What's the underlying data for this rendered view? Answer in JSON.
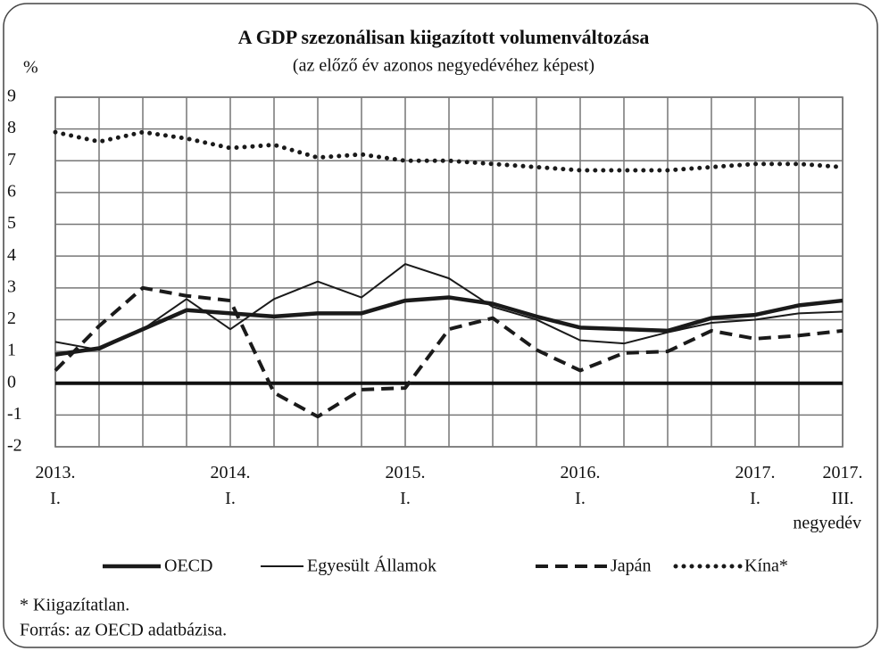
{
  "chart_data": {
    "type": "line",
    "title": "A GDP szezonálisan kiigazított volumenváltozása",
    "subtitle": "(az előző év azonos negyedévéhez képest)",
    "y_label": "%",
    "x_label": "negyedév",
    "categories": [
      "2013.\nI.",
      null,
      null,
      null,
      "2014.\nI.",
      null,
      null,
      null,
      "2015.\nI.",
      null,
      null,
      null,
      "2016.\nI.",
      null,
      null,
      null,
      "2017.\nI.",
      null,
      "2017.\nIII."
    ],
    "series": [
      {
        "name": "OECD",
        "color": "#1a1a1a",
        "style": "thick",
        "values": [
          0.9,
          1.1,
          1.7,
          2.3,
          2.2,
          2.1,
          2.2,
          2.2,
          2.6,
          2.7,
          2.5,
          2.1,
          1.75,
          1.7,
          1.65,
          2.05,
          2.15,
          2.45,
          2.6
        ]
      },
      {
        "name": "Egyesült Államok",
        "color": "#1a1a1a",
        "style": "thin",
        "values": [
          1.3,
          1.05,
          1.7,
          2.65,
          1.7,
          2.65,
          3.2,
          2.7,
          3.75,
          3.3,
          2.4,
          2.0,
          1.35,
          1.25,
          1.6,
          1.9,
          2.0,
          2.2,
          2.25
        ]
      },
      {
        "name": "Japán",
        "color": "#1a1a1a",
        "style": "dashed",
        "values": [
          0.4,
          1.8,
          3.0,
          2.75,
          2.6,
          -0.3,
          -1.05,
          -0.2,
          -0.15,
          1.7,
          2.05,
          1.05,
          0.4,
          0.95,
          1.0,
          1.65,
          1.4,
          1.5,
          1.65
        ]
      },
      {
        "name": "Kína*",
        "color": "#1a1a1a",
        "style": "dotted",
        "values": [
          7.9,
          7.6,
          7.9,
          7.7,
          7.4,
          7.5,
          7.1,
          7.2,
          7.0,
          7.0,
          6.9,
          6.8,
          6.7,
          6.7,
          6.7,
          6.8,
          6.9,
          6.9,
          6.8
        ]
      }
    ],
    "ylim": [
      -2,
      9
    ],
    "yticks": [
      -2,
      -1,
      0,
      1,
      2,
      3,
      4,
      5,
      6,
      7,
      8,
      9
    ],
    "grid": true,
    "legend": "bottom",
    "notes": [
      "* Kiigazítatlan.",
      "Forrás: az OECD adatbázisa."
    ]
  }
}
